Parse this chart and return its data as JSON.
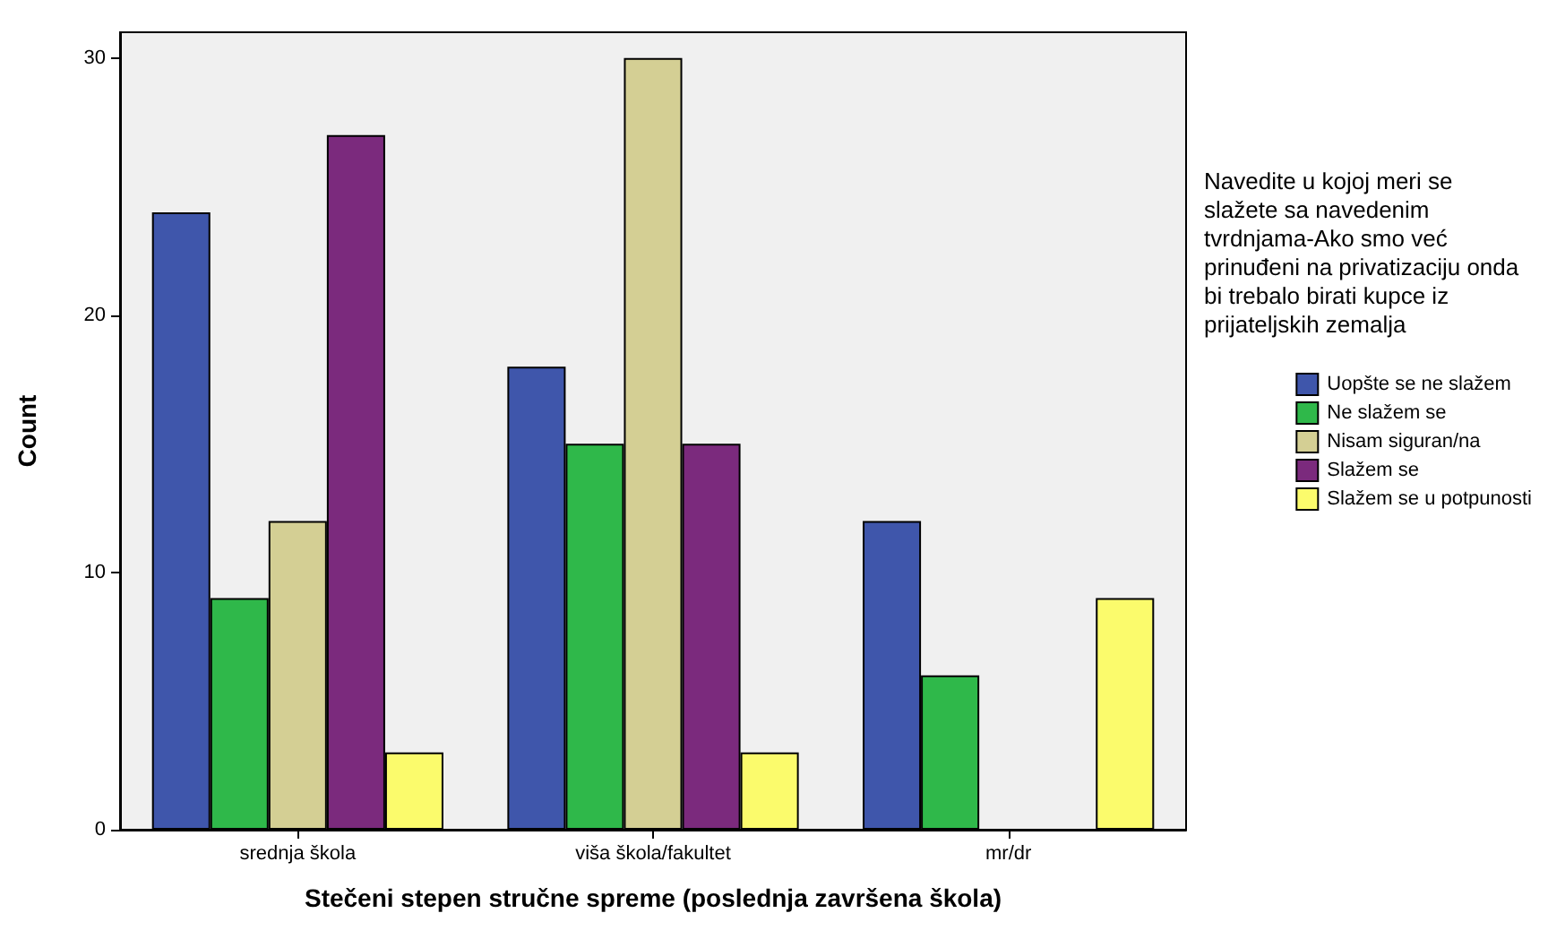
{
  "chart_data": {
    "type": "bar",
    "categories": [
      "srednja škola",
      "viša škola/fakultet",
      "mr/dr"
    ],
    "series": [
      {
        "name": "Uopšte se ne slažem",
        "color": "#3f56ab",
        "values": [
          24,
          18,
          12
        ]
      },
      {
        "name": "Ne slažem se",
        "color": "#2fb84a",
        "values": [
          9,
          15,
          6
        ]
      },
      {
        "name": "Nisam siguran/na",
        "color": "#d4cf94",
        "values": [
          12,
          30,
          null
        ]
      },
      {
        "name": "Slažem se",
        "color": "#7b2a7d",
        "values": [
          27,
          15,
          null
        ]
      },
      {
        "name": "Slažem se u potpunosti",
        "color": "#fbfb6c",
        "values": [
          3,
          3,
          9
        ]
      }
    ],
    "xlabel": "Stečeni stepen stručne spreme (poslednja završena škola)",
    "ylabel": "Count",
    "legend_title": "Navedite u kojoj meri se slažete sa navedenim tvrdnjama-Ako smo već prinuđeni na privatizaciju onda bi trebalo birati kupce iz prijateljskih zemalja",
    "ylim": [
      0,
      31
    ],
    "yticks": [
      0,
      10,
      20,
      30
    ],
    "grid": false,
    "legend": "right"
  }
}
